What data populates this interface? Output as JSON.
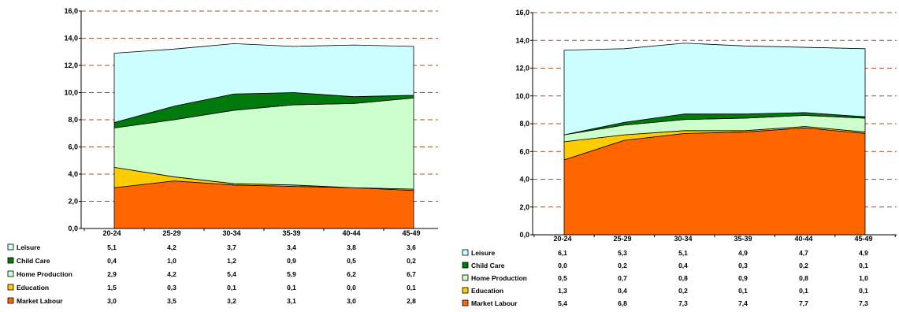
{
  "chart_data": [
    {
      "type": "area",
      "categories": [
        "20-24",
        "25-29",
        "30-34",
        "35-39",
        "40-44",
        "45-49"
      ],
      "ylim": [
        0,
        16
      ],
      "yticks": [
        "0,0",
        "2,0",
        "4,0",
        "6,0",
        "8,0",
        "10,0",
        "12,0",
        "14,0",
        "16,0"
      ],
      "grid": "dashed horizontal",
      "legend": "table-below",
      "series": [
        {
          "name": "Leisure",
          "color": "#ccffff",
          "values": [
            5.1,
            4.2,
            3.7,
            3.4,
            3.8,
            3.6
          ],
          "labels": [
            "5,1",
            "4,2",
            "3,7",
            "3,4",
            "3,8",
            "3,6"
          ]
        },
        {
          "name": "Child Care",
          "color": "#007a0d",
          "values": [
            0.4,
            1.0,
            1.2,
            0.9,
            0.5,
            0.2
          ],
          "labels": [
            "0,4",
            "1,0",
            "1,2",
            "0,9",
            "0,5",
            "0,2"
          ]
        },
        {
          "name": "Home Production",
          "color": "#ccffcc",
          "values": [
            2.9,
            4.2,
            5.4,
            5.9,
            6.2,
            6.7
          ],
          "labels": [
            "2,9",
            "4,2",
            "5,4",
            "5,9",
            "6,2",
            "6,7"
          ]
        },
        {
          "name": "Education",
          "color": "#ffcc00",
          "values": [
            1.5,
            0.3,
            0.1,
            0.1,
            0.0,
            0.1
          ],
          "labels": [
            "1,5",
            "0,3",
            "0,1",
            "0,1",
            "0,0",
            "0,1"
          ]
        },
        {
          "name": "Market Labour",
          "color": "#ff6600",
          "values": [
            3.0,
            3.5,
            3.2,
            3.1,
            3.0,
            2.8
          ],
          "labels": [
            "3,0",
            "3,5",
            "3,2",
            "3,1",
            "3,0",
            "2,8"
          ]
        }
      ]
    },
    {
      "type": "area",
      "categories": [
        "20-24",
        "25-29",
        "30-34",
        "35-39",
        "40-44",
        "45-49"
      ],
      "ylim": [
        0,
        16
      ],
      "yticks": [
        "0,0",
        "2,0",
        "4,0",
        "6,0",
        "8,0",
        "10,0",
        "12,0",
        "14,0",
        "16,0"
      ],
      "grid": "dashed horizontal",
      "legend": "table-below",
      "series": [
        {
          "name": "Leisure",
          "color": "#ccffff",
          "values": [
            6.1,
            5.3,
            5.1,
            4.9,
            4.7,
            4.9
          ],
          "labels": [
            "6,1",
            "5,3",
            "5,1",
            "4,9",
            "4,7",
            "4,9"
          ]
        },
        {
          "name": "Child Care",
          "color": "#007a0d",
          "values": [
            0.0,
            0.2,
            0.4,
            0.3,
            0.2,
            0.1
          ],
          "labels": [
            "0,0",
            "0,2",
            "0,4",
            "0,3",
            "0,2",
            "0,1"
          ]
        },
        {
          "name": "Home Production",
          "color": "#ccffcc",
          "values": [
            0.5,
            0.7,
            0.8,
            0.9,
            0.8,
            1.0
          ],
          "labels": [
            "0,5",
            "0,7",
            "0,8",
            "0,9",
            "0,8",
            "1,0"
          ]
        },
        {
          "name": "Education",
          "color": "#ffcc00",
          "values": [
            1.3,
            0.4,
            0.2,
            0.1,
            0.1,
            0.1
          ],
          "labels": [
            "1,3",
            "0,4",
            "0,2",
            "0,1",
            "0,1",
            "0,1"
          ]
        },
        {
          "name": "Market Labour",
          "color": "#ff6600",
          "values": [
            5.4,
            6.8,
            7.3,
            7.4,
            7.7,
            7.3
          ],
          "labels": [
            "5,4",
            "6,8",
            "7,3",
            "7,4",
            "7,7",
            "7,3"
          ]
        }
      ]
    }
  ]
}
